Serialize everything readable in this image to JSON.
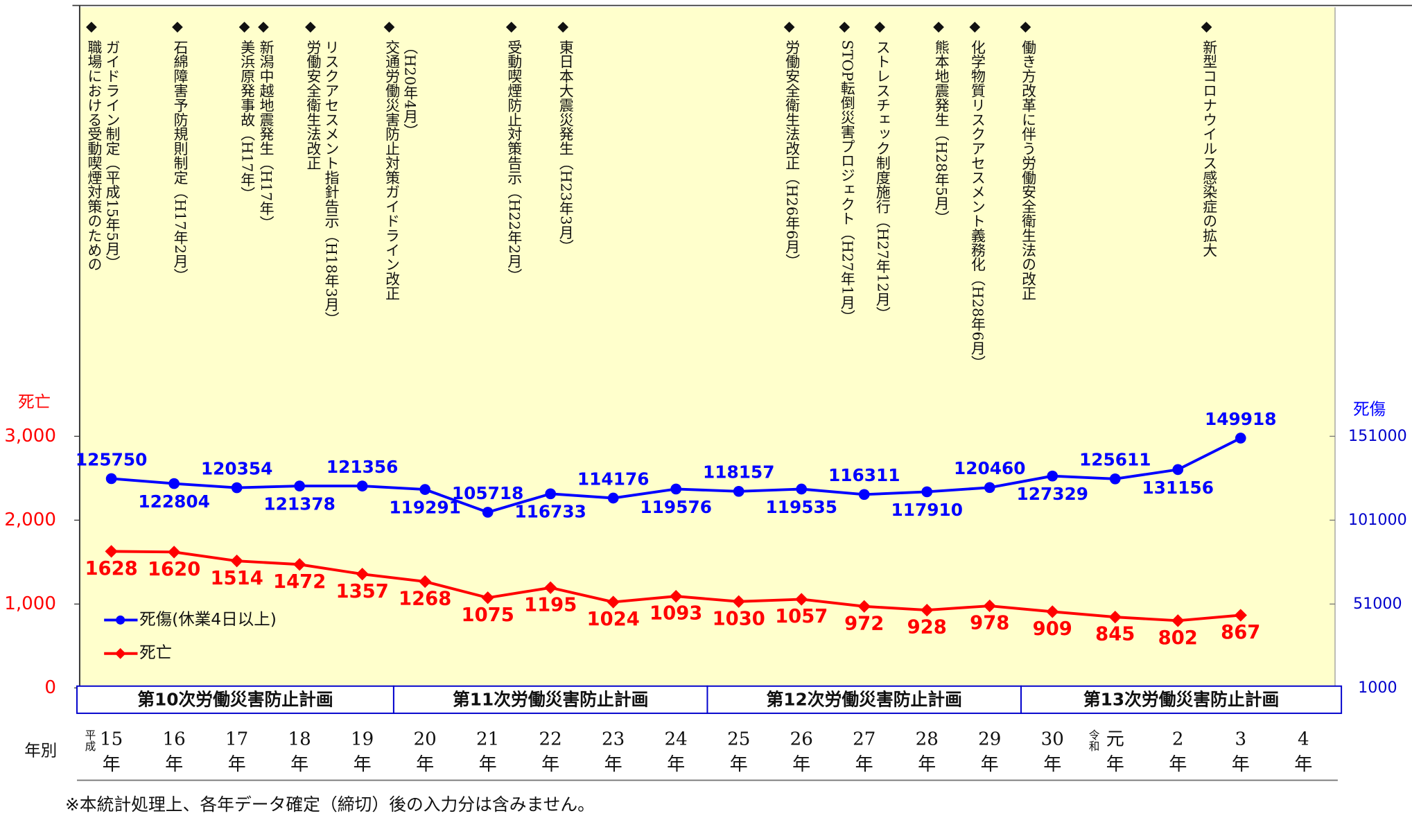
{
  "chart_data": {
    "type": "line",
    "categories": [
      "15年",
      "16年",
      "17年",
      "18年",
      "19年",
      "20年",
      "21年",
      "22年",
      "23年",
      "24年",
      "25年",
      "26年",
      "27年",
      "28年",
      "29年",
      "30年",
      "元年",
      "2年",
      "3年",
      "4年"
    ],
    "era_markers": [
      {
        "at": "15年",
        "label": "平成"
      },
      {
        "at": "元年",
        "label": "令和"
      }
    ],
    "series": [
      {
        "name": "死傷(休業4日以上)",
        "color": "#0000ff",
        "axis": "y2",
        "values": [
          125750,
          122804,
          120354,
          121378,
          121356,
          119291,
          105718,
          116733,
          114176,
          119576,
          118157,
          119535,
          116311,
          117910,
          120460,
          127329,
          125611,
          131156,
          149918,
          null
        ]
      },
      {
        "name": "死亡",
        "color": "#ff0000",
        "values": [
          1628,
          1620,
          1514,
          1472,
          1357,
          1268,
          1075,
          1195,
          1024,
          1093,
          1030,
          1057,
          972,
          928,
          978,
          909,
          845,
          802,
          867,
          null
        ]
      }
    ],
    "ylabel": "死亡",
    "y2label": "死傷",
    "ylim": [
      0,
      3000
    ],
    "yticks": [
      0,
      {
        "value": 1000,
        "label": "1,000"
      },
      {
        "value": 2000,
        "label": "2,000"
      },
      {
        "value": 3000,
        "label": "3,000"
      }
    ],
    "y2lim": [
      1000,
      151000
    ],
    "y2ticks": [
      1000,
      51000,
      101000,
      151000
    ],
    "plans": [
      "第10次労働災害防止計画",
      "第11次労働災害防止計画",
      "第12次労働災害防止計画",
      "第13次労働災害防止計画"
    ],
    "annotations": [
      {
        "lines": [
          "職場における受動喫煙対策のための",
          "ガイドライン制定（平成15年5月）"
        ]
      },
      {
        "lines": [
          "石綿障害予防規則制定（H17年2月）"
        ]
      },
      {
        "lines": [
          "美浜原発事故（H17年）"
        ]
      },
      {
        "lines": [
          "新潟中越地震発生（H17年）"
        ]
      },
      {
        "lines": [
          "労働安全衛生法改正",
          "リスクアセスメント指針告示（H18年3月）"
        ]
      },
      {
        "lines": [
          "交通労働災害防止対策ガイドライン改正",
          "（H20年4月）"
        ]
      },
      {
        "lines": [
          "受動喫煙防止対策告示（H22年2月）"
        ]
      },
      {
        "lines": [
          "東日本大震災発生（H23年3月）"
        ]
      },
      {
        "lines": [
          "労働安全衛生法改正（H26年6月）"
        ]
      },
      {
        "lines": [
          "STOP転倒災害プロジェクト（H27年1月）"
        ]
      },
      {
        "lines": [
          "ストレスチェック制度施行（H27年12月）"
        ]
      },
      {
        "lines": [
          "熊本地震発生（H28年5月）"
        ]
      },
      {
        "lines": [
          "化学物質リスクアセスメント義務化（H28年6月）"
        ]
      },
      {
        "lines": [
          "働き方改革に伴う労働安全衛生法の改正"
        ]
      },
      {
        "lines": [
          "新型コロナウイルス感染症の拡大"
        ]
      }
    ],
    "row_label": "年別",
    "note": "※本統計処理上、各年データ確定（締切）後の入力分は含みません。"
  }
}
